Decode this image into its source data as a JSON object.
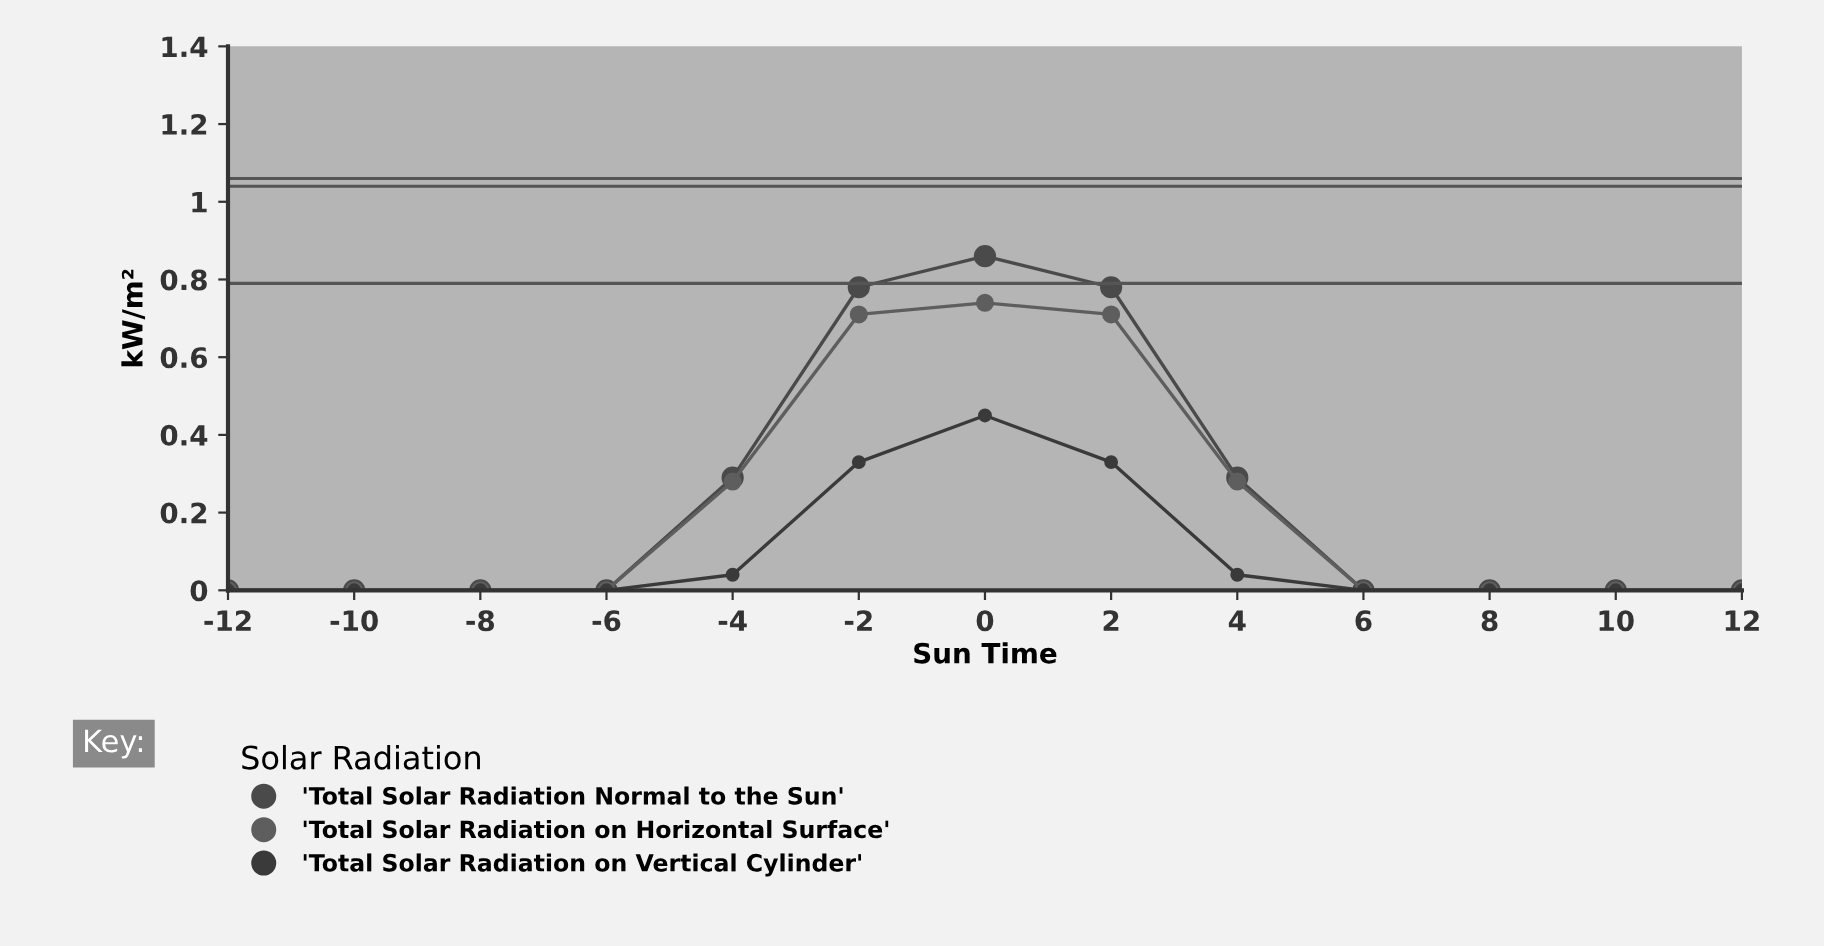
{
  "chart_data": {
    "type": "line",
    "xlabel": "Sun Time",
    "ylabel": "kW/m²",
    "legend_title": "Solar Radiation",
    "annotations": [
      "Key:"
    ],
    "x": [
      -12,
      -10,
      -8,
      -6,
      -4,
      -2,
      0,
      2,
      4,
      6,
      8,
      10,
      12
    ],
    "series": [
      {
        "name": "'Total Solar Radiation Normal to the Sun'",
        "color": "#4a4a4a",
        "values": [
          0,
          0,
          0,
          0,
          0.29,
          0.78,
          0.86,
          0.78,
          0.29,
          0,
          0,
          0,
          0
        ]
      },
      {
        "name": "'Total Solar Radiation on Horizontal Surface'",
        "color": "#5e5e5e",
        "values": [
          0,
          0,
          0,
          0,
          0.28,
          0.71,
          0.74,
          0.71,
          0.28,
          0,
          0,
          0,
          0
        ]
      },
      {
        "name": "'Total Solar Radiation on Vertical Cylinder'",
        "color": "#3a3a3a",
        "values": [
          0,
          0,
          0,
          0,
          0.04,
          0.33,
          0.45,
          0.33,
          0.04,
          0,
          0,
          0,
          0
        ]
      }
    ],
    "ref_lines": [
      {
        "axis": "y",
        "value": 1.06,
        "color": "#555555"
      },
      {
        "axis": "y",
        "value": 1.04,
        "color": "#555555"
      },
      {
        "axis": "y",
        "value": 0.79,
        "color": "#555555"
      }
    ],
    "xlim": [
      -12,
      12
    ],
    "ylim": [
      0,
      1.4
    ],
    "xticks": [
      -12,
      -10,
      -8,
      -6,
      -4,
      -2,
      0,
      2,
      4,
      6,
      8,
      10,
      12
    ],
    "yticks": [
      0,
      0.2,
      0.4,
      0.6,
      0.8,
      1,
      1.2,
      1.4
    ],
    "grid": false,
    "legend": "bottom left",
    "marker": "circle",
    "line_style": "solid"
  }
}
